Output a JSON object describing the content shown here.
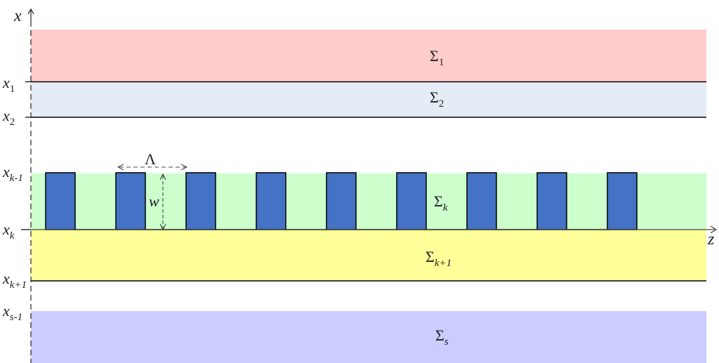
{
  "axes": {
    "x_label": "x",
    "z_label": "z"
  },
  "colors": {
    "sigma1_fill": "#ffcccc",
    "sigma2_fill": "#e6ecf6",
    "sigmak_fill": "#ccffcc",
    "sigmak1_fill": "#ffff99",
    "sigmas_fill": "#ccccff",
    "grating_fill": "#4472c4",
    "line": "#000000",
    "dash": "#555555"
  },
  "layers": [
    {
      "id": "sigma-1",
      "label": "Σ",
      "sub": "1"
    },
    {
      "id": "sigma-2",
      "label": "Σ",
      "sub": "2"
    },
    {
      "id": "sigma-k",
      "label": "Σ",
      "sub": "k"
    },
    {
      "id": "sigma-k1",
      "label": "Σ",
      "sub": "k+1"
    },
    {
      "id": "sigma-s",
      "label": "Σ",
      "sub": "s"
    }
  ],
  "boundaries": [
    {
      "id": "x1",
      "label": "x",
      "sub": "1"
    },
    {
      "id": "x2",
      "label": "x",
      "sub": "2"
    },
    {
      "id": "xk-1",
      "label": "x",
      "sub": "k-1"
    },
    {
      "id": "xk",
      "label": "x",
      "sub": "k"
    },
    {
      "id": "xk+1",
      "label": "x",
      "sub": "k+1"
    },
    {
      "id": "xs-1",
      "label": "x",
      "sub": "s-1"
    }
  ],
  "grating": {
    "period_label": "Λ",
    "depth_label": "w",
    "teeth_count": 9
  }
}
